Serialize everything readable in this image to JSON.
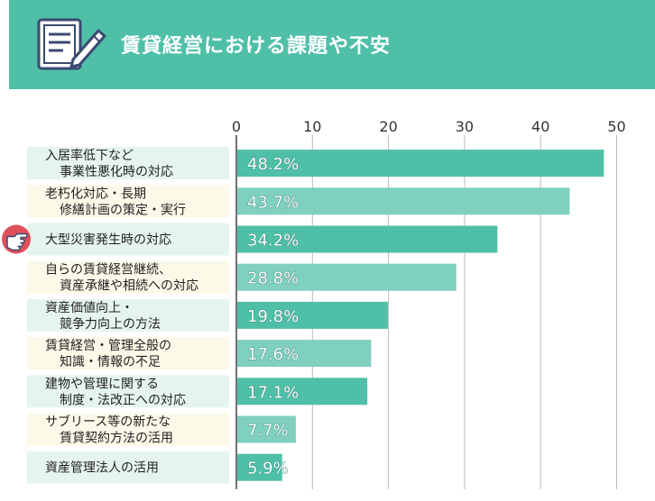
{
  "header": {
    "title": "賃貸経営における課題や不安",
    "icon": "clipboard-pen-icon"
  },
  "colors": {
    "header_bg": "#4fbfa8",
    "bar_dark": "#4fbfa8",
    "bar_light": "#7fd0bf",
    "label_bg_green": "#e6f4ee",
    "label_bg_yellow": "#fdf9e8",
    "highlight_badge": "#e0505a"
  },
  "chart_data": {
    "type": "bar",
    "orientation": "horizontal",
    "title": "賃貸経営における課題や不安",
    "xlabel": "",
    "ylabel": "",
    "xlim": [
      0,
      50
    ],
    "ticks": [
      0,
      10,
      20,
      30,
      40,
      50
    ],
    "grid": true,
    "highlighted_category_index": 2,
    "categories": [
      [
        "入居率低下など",
        "事業性悪化時の対応"
      ],
      [
        "老朽化対応・長期",
        "修繕計画の策定・実行"
      ],
      [
        "大型災害発生時の対応"
      ],
      [
        "自らの賃貸経営継続、",
        "資産承継や相続への対応"
      ],
      [
        "資産価値向上・",
        "競争力向上の方法"
      ],
      [
        "賃貸経営・管理全般の",
        "知識・情報の不足"
      ],
      [
        "建物や管理に関する",
        "制度・法改正への対応"
      ],
      [
        "サブリース等の新たな",
        "賃貸契約方法の活用"
      ],
      [
        "資産管理法人の活用"
      ]
    ],
    "values": [
      48.2,
      43.7,
      34.2,
      28.8,
      19.8,
      17.6,
      17.1,
      7.7,
      5.9
    ],
    "value_labels": [
      "48.2%",
      "43.7%",
      "34.2%",
      "28.8%",
      "19.8%",
      "17.6%",
      "17.1%",
      "7.7%",
      "5.9%"
    ]
  }
}
